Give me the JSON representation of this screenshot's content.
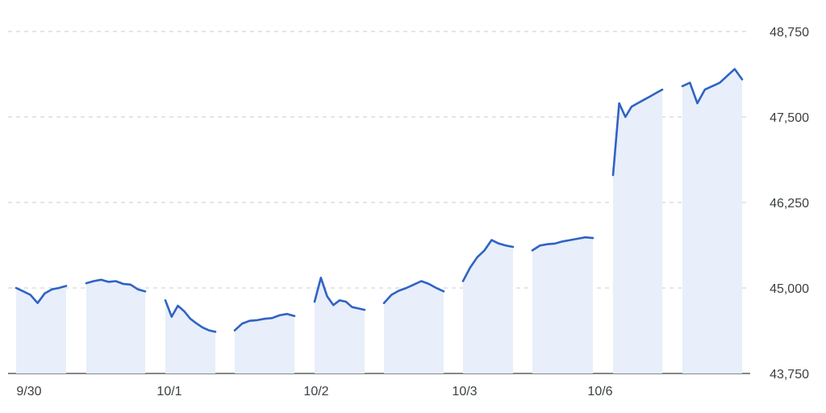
{
  "colors": {
    "line": "#2f63c4",
    "area_fill": "#e8eefa",
    "grid": "#c8ccd0",
    "axis_text": "#3c4043"
  },
  "chart_data": {
    "type": "line",
    "title": "",
    "xlabel": "",
    "ylabel": "",
    "ylim": [
      43750,
      48750
    ],
    "yticks": [
      "48,750",
      "47,500",
      "46,250",
      "45,000",
      "43,750"
    ],
    "ytick_values": [
      48750,
      47500,
      46250,
      45000,
      43750
    ],
    "xtick_labels": [
      "9/30",
      "10/1",
      "10/2",
      "10/3",
      "10/6"
    ],
    "grid": true,
    "sessions": [
      {
        "date": "9/30",
        "part": "a",
        "values": [
          45000,
          44950,
          44900,
          44780,
          44920,
          44980,
          45000,
          45030
        ]
      },
      {
        "date": "9/30",
        "part": "b",
        "values": [
          45070,
          45100,
          45120,
          45090,
          45100,
          45060,
          45050,
          44980,
          44950
        ]
      },
      {
        "date": "10/1",
        "part": "a",
        "values": [
          44820,
          44580,
          44740,
          44660,
          44550,
          44480,
          44420,
          44380,
          44360
        ]
      },
      {
        "date": "10/1",
        "part": "b",
        "values": [
          44380,
          44480,
          44520,
          44530,
          44550,
          44560,
          44600,
          44620,
          44590
        ]
      },
      {
        "date": "10/2",
        "part": "a",
        "values": [
          44800,
          45150,
          44880,
          44750,
          44820,
          44800,
          44720,
          44700,
          44680
        ]
      },
      {
        "date": "10/2",
        "part": "b",
        "values": [
          44780,
          44900,
          44960,
          45000,
          45050,
          45100,
          45060,
          45000,
          44950
        ]
      },
      {
        "date": "10/3",
        "part": "a",
        "values": [
          45100,
          45300,
          45450,
          45550,
          45700,
          45650,
          45620,
          45600
        ]
      },
      {
        "date": "10/3",
        "part": "b",
        "values": [
          45550,
          45620,
          45640,
          45650,
          45680,
          45700,
          45720,
          45740,
          45730
        ]
      },
      {
        "date": "10/6",
        "part": "a",
        "values": [
          46650,
          47700,
          47500,
          47650,
          47700,
          47750,
          47800,
          47850,
          47900
        ]
      },
      {
        "date": "10/6",
        "part": "b",
        "values": [
          47950,
          48000,
          47700,
          47900,
          47950,
          48000,
          48100,
          48200,
          48050
        ]
      }
    ]
  }
}
